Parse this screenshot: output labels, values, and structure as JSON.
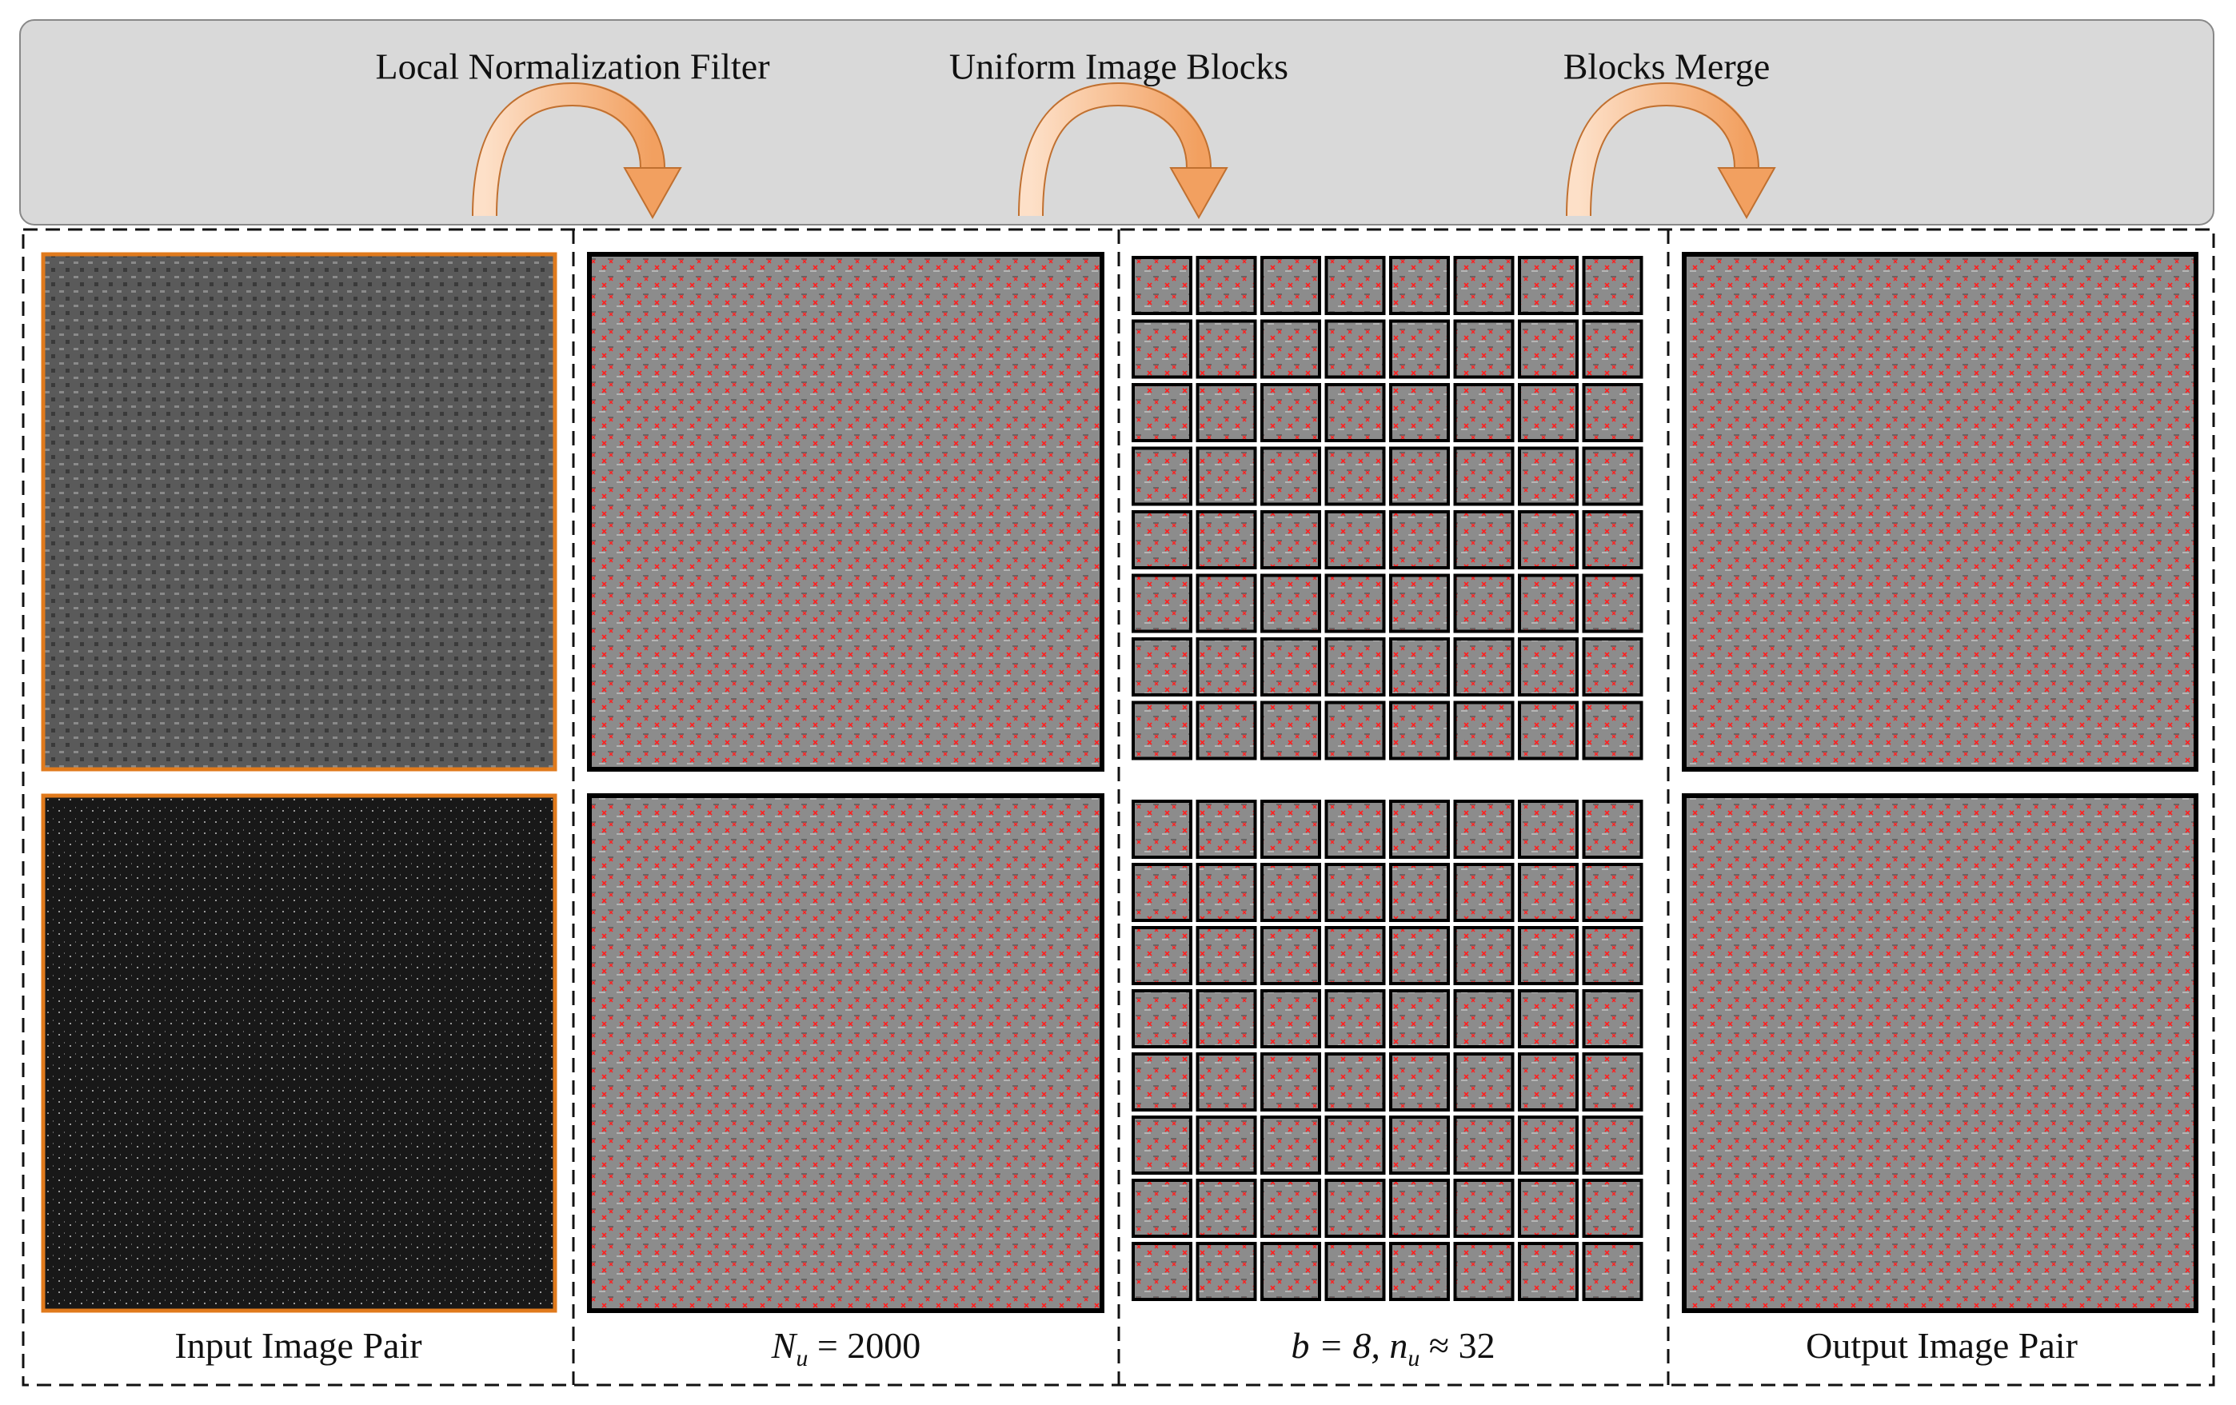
{
  "header": {
    "steps": [
      "Local Normalization Filter",
      "Uniform Image Blocks",
      "Blocks Merge"
    ]
  },
  "columns": [
    {
      "caption": "Input Image Pair"
    },
    {
      "caption": {
        "symbol": "N",
        "subscript": "u",
        "relation": " = 2000"
      }
    },
    {
      "caption": {
        "prefix": "b = 8,  ",
        "symbol": "n",
        "subscript": "u",
        "relation": " ≈ 32"
      }
    },
    {
      "caption": "Output Image Pair"
    }
  ]
}
